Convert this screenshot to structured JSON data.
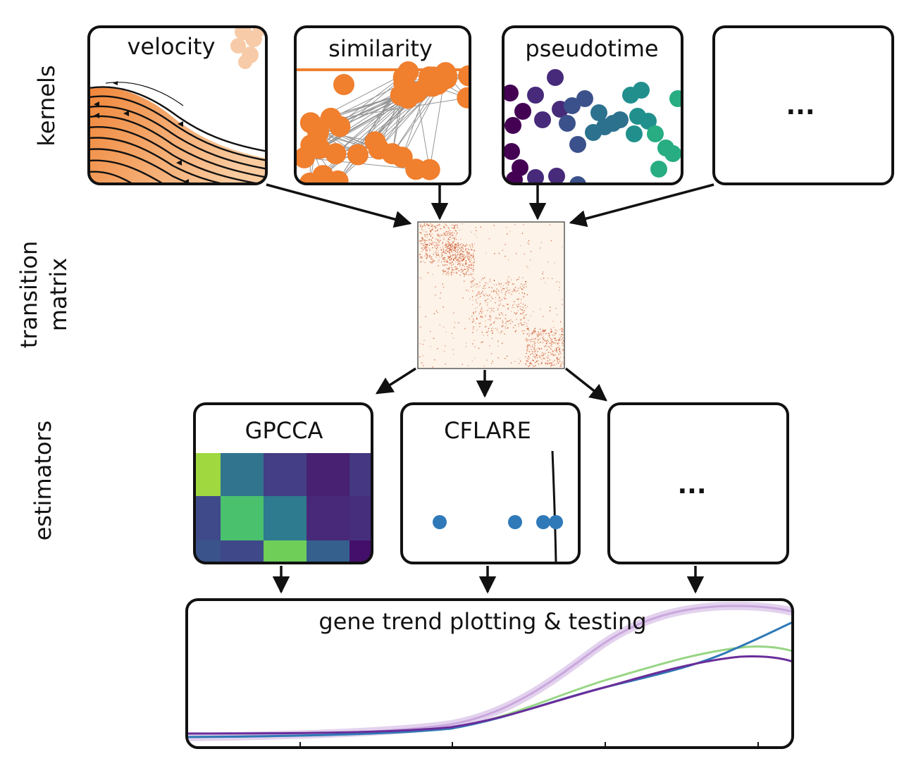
{
  "row_labels": {
    "kernels": "kernels",
    "transition_line1": "transition",
    "transition_line2": "matrix",
    "estimators": "estimators"
  },
  "kernels": [
    {
      "id": "velocity",
      "title": "velocity"
    },
    {
      "id": "similarity",
      "title": "similarity"
    },
    {
      "id": "pseudotime",
      "title": "pseudotime"
    },
    {
      "id": "more",
      "title": "..."
    }
  ],
  "estimators": [
    {
      "id": "gpcca",
      "title": "GPCCA"
    },
    {
      "id": "cflare",
      "title": "CFLARE"
    },
    {
      "id": "more",
      "title": "..."
    }
  ],
  "gene_trends": {
    "title": "gene trend plotting & testing"
  },
  "colors": {
    "orange": "#f07f2e",
    "matrix_bg": "#fdf3e8",
    "matrix_dot": "#c8471b",
    "cflare_dot": "#2f79b8",
    "trend_purple_light": "#c9a7dd",
    "trend_blue": "#2f79b8",
    "trend_green": "#98d585",
    "trend_purple": "#6a2d9a"
  }
}
